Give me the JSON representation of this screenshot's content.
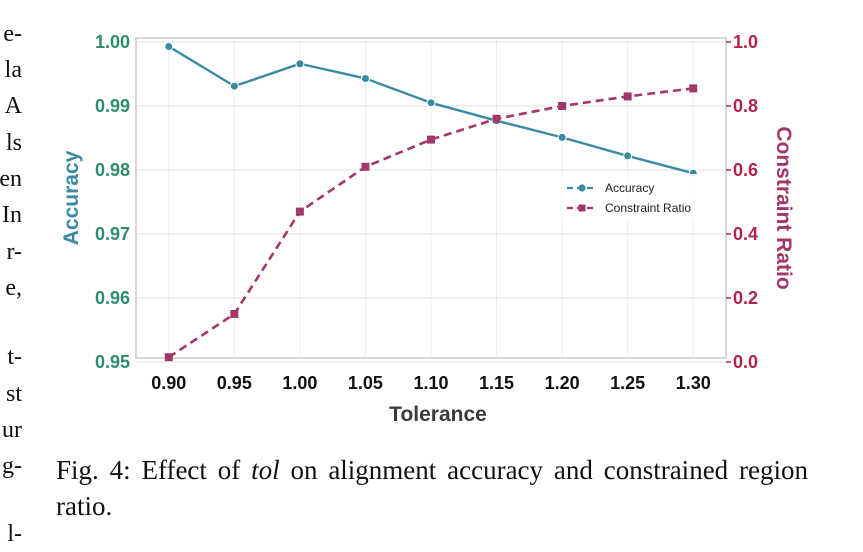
{
  "left_margin_fragments": [
    "e-",
    "la",
    "A",
    "ls",
    "en",
    "In",
    "r-",
    "e,",
    "t-",
    "st",
    "ur",
    "g-",
    "l-"
  ],
  "caption": {
    "prefix": "Fig. 4: Effect of ",
    "italic": "tol",
    "suffix": " on alignment accuracy and constrained region ratio."
  },
  "chart_data": {
    "type": "line",
    "xlabel": "Tolerance",
    "ylabel_left": "Accuracy",
    "ylabel_right": "Constraint Ratio",
    "x": [
      0.9,
      0.95,
      1.0,
      1.05,
      1.1,
      1.15,
      1.2,
      1.25,
      1.3
    ],
    "x_tick_labels": [
      "0.90",
      "0.95",
      "1.00",
      "1.05",
      "1.10",
      "1.15",
      "1.20",
      "1.25",
      "1.30"
    ],
    "ylim_left": [
      0.95,
      1.0
    ],
    "y_left_tick_labels": [
      "0.95",
      "0.96",
      "0.97",
      "0.98",
      "0.99",
      "1.00"
    ],
    "ylim_right": [
      0.0,
      1.0
    ],
    "y_right_tick_labels": [
      "0.0",
      "0.2",
      "0.4",
      "0.6",
      "0.8",
      "1.0"
    ],
    "grid": true,
    "legend_position": "center-right",
    "series": [
      {
        "name": "Accuracy",
        "axis": "left",
        "style": "dashed-line-circle-markers",
        "color": "#3a8aa3",
        "values": [
          0.9993,
          0.9931,
          0.9966,
          0.9943,
          0.9905,
          0.9877,
          0.9851,
          0.9822,
          0.9795
        ]
      },
      {
        "name": "Constraint Ratio",
        "axis": "right",
        "style": "dashed-line-square-markers",
        "color": "#a3376a",
        "values": [
          0.015,
          0.15,
          0.47,
          0.61,
          0.695,
          0.76,
          0.8,
          0.83,
          0.855
        ]
      }
    ],
    "colors": {
      "left_axis_ticks": "#2e8b6f",
      "left_axis_label": "#3a8aa3",
      "right_axis": "#b0244a",
      "right_axis_label": "#a3376a",
      "x_axis": "#111111"
    }
  }
}
